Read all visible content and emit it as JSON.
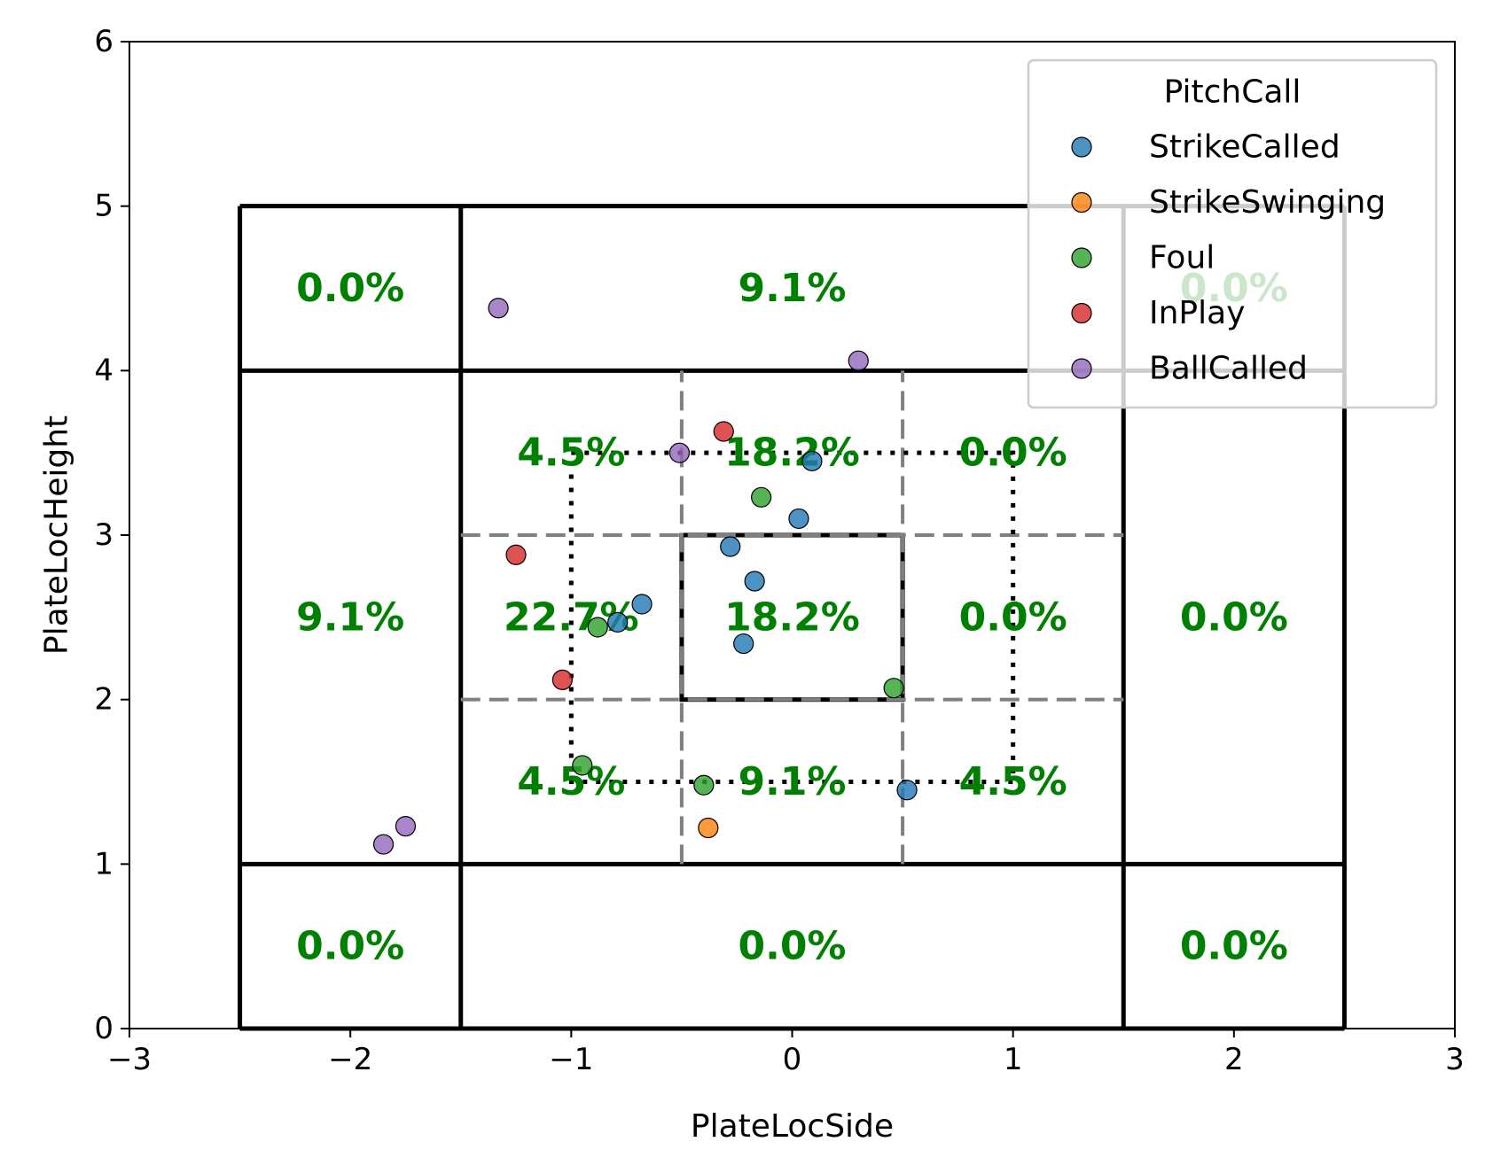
{
  "chart_data": {
    "type": "scatter",
    "title": "",
    "xlabel": "PlateLocSide",
    "ylabel": "PlateLocHeight",
    "xlim": [
      -3,
      3
    ],
    "ylim": [
      0,
      6
    ],
    "x_ticks": [
      -3,
      -2,
      -1,
      0,
      1,
      2,
      3
    ],
    "x_tick_labels": [
      "−3",
      "−2",
      "−1",
      "0",
      "1",
      "2",
      "3"
    ],
    "y_ticks": [
      0,
      1,
      2,
      3,
      4,
      5,
      6
    ],
    "y_tick_labels": [
      "0",
      "1",
      "2",
      "3",
      "4",
      "5",
      "6"
    ],
    "grid": false,
    "legend": {
      "title": "PitchCall",
      "placement": "top-right"
    },
    "series": [
      {
        "name": "StrikeCalled",
        "color": "#1f77b4",
        "points": [
          {
            "x": 0.09,
            "y": 3.45
          },
          {
            "x": 0.03,
            "y": 3.1
          },
          {
            "x": -0.28,
            "y": 2.93
          },
          {
            "x": -0.17,
            "y": 2.72
          },
          {
            "x": -0.68,
            "y": 2.58
          },
          {
            "x": -0.79,
            "y": 2.47
          },
          {
            "x": -0.22,
            "y": 2.34
          },
          {
            "x": 0.52,
            "y": 1.45
          }
        ]
      },
      {
        "name": "StrikeSwinging",
        "color": "#ff7f0e",
        "points": [
          {
            "x": -0.38,
            "y": 1.22
          }
        ]
      },
      {
        "name": "Foul",
        "color": "#2ca02c",
        "points": [
          {
            "x": -0.14,
            "y": 3.23
          },
          {
            "x": -0.88,
            "y": 2.44
          },
          {
            "x": 0.46,
            "y": 2.07
          },
          {
            "x": -0.95,
            "y": 1.6
          },
          {
            "x": -0.4,
            "y": 1.48
          }
        ]
      },
      {
        "name": "InPlay",
        "color": "#d62728",
        "points": [
          {
            "x": -0.31,
            "y": 3.63
          },
          {
            "x": -1.25,
            "y": 2.88
          },
          {
            "x": -1.04,
            "y": 2.12
          }
        ]
      },
      {
        "name": "BallCalled",
        "color": "#9467bd",
        "points": [
          {
            "x": -1.33,
            "y": 4.38
          },
          {
            "x": 0.3,
            "y": 4.06
          },
          {
            "x": -0.51,
            "y": 3.5
          },
          {
            "x": -1.75,
            "y": 1.23
          },
          {
            "x": -1.85,
            "y": 1.12
          }
        ]
      }
    ],
    "zone_labels": [
      {
        "x": -2,
        "y": 4.5,
        "text": "0.0%"
      },
      {
        "x": 0,
        "y": 4.5,
        "text": "9.1%"
      },
      {
        "x": 2,
        "y": 4.5,
        "text": "0.0%"
      },
      {
        "x": -2,
        "y": 2.5,
        "text": "9.1%"
      },
      {
        "x": 2,
        "y": 2.5,
        "text": "0.0%"
      },
      {
        "x": -2,
        "y": 0.5,
        "text": "0.0%"
      },
      {
        "x": 0,
        "y": 0.5,
        "text": "0.0%"
      },
      {
        "x": 2,
        "y": 0.5,
        "text": "0.0%"
      },
      {
        "x": -1,
        "y": 3.5,
        "text": "4.5%"
      },
      {
        "x": 0,
        "y": 3.5,
        "text": "18.2%"
      },
      {
        "x": 1,
        "y": 3.5,
        "text": "0.0%"
      },
      {
        "x": -1,
        "y": 2.5,
        "text": "22.7%"
      },
      {
        "x": 0,
        "y": 2.5,
        "text": "18.2%"
      },
      {
        "x": 1,
        "y": 2.5,
        "text": "0.0%"
      },
      {
        "x": -1,
        "y": 1.5,
        "text": "4.5%"
      },
      {
        "x": 0,
        "y": 1.5,
        "text": "9.1%"
      },
      {
        "x": 1,
        "y": 1.5,
        "text": "4.5%"
      }
    ],
    "outer_zone_x": [
      -2.5,
      -1.5,
      1.5,
      2.5
    ],
    "outer_zone_y": [
      0,
      1,
      4,
      5
    ],
    "dashed_x": [
      -0.5,
      0.5
    ],
    "dashed_y": [
      2,
      3
    ],
    "dashed_x_range": [
      -1.5,
      1.5
    ],
    "dashed_y_range": [
      1,
      4
    ],
    "dotted_box": {
      "x": [
        -1,
        1
      ],
      "y": [
        1.5,
        3.5
      ]
    },
    "center_box": {
      "x": [
        -0.5,
        0.5
      ],
      "y": [
        2,
        3
      ]
    }
  }
}
